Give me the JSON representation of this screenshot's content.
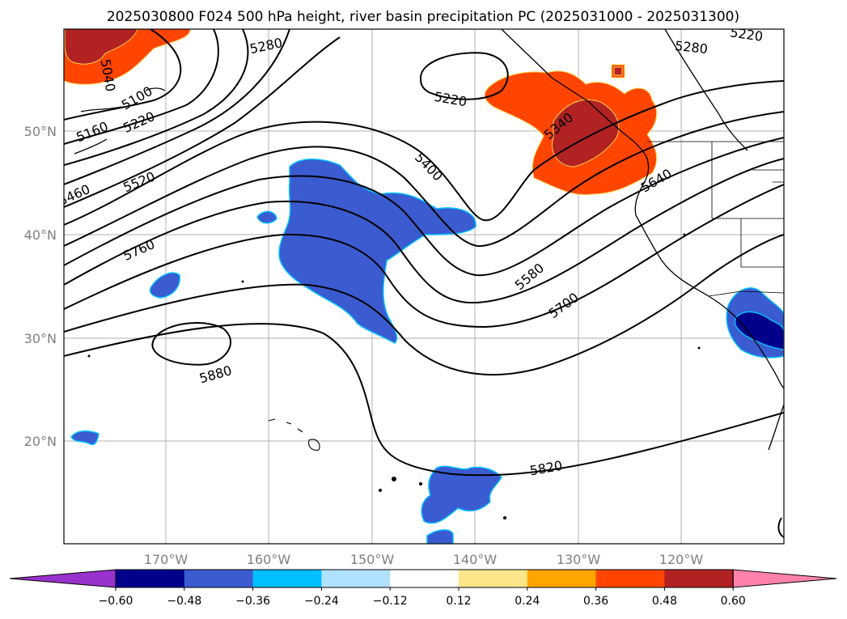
{
  "title": "2025030800 F024 500 hPa height, river basin precipitation PC (2025031000 - 2025031300)",
  "lon_labels": [
    "170°W",
    "160°W",
    "150°W",
    "140°W",
    "130°W",
    "120°W"
  ],
  "lat_labels": [
    "50°N",
    "40°N",
    "30°N",
    "20°N"
  ],
  "colorbar": {
    "ticks": [
      "−0.60",
      "−0.48",
      "−0.36",
      "−0.24",
      "−0.12",
      "0.12",
      "0.24",
      "0.36",
      "0.48",
      "0.60"
    ],
    "colors": [
      "#9932cc",
      "#00008b",
      "#3b5bd0",
      "#00bfff",
      "#b0e2ff",
      "#ffffff",
      "#fde68a",
      "#ffa500",
      "#ff4500",
      "#b22222",
      "#ff82ab"
    ]
  },
  "contour_labels": [
    "5280",
    "5220",
    "5040",
    "5100",
    "5160",
    "5220",
    "5460",
    "5520",
    "5760",
    "5220",
    "5280",
    "5340",
    "5400",
    "5640",
    "5580",
    "5700",
    "5880",
    "5820"
  ]
}
